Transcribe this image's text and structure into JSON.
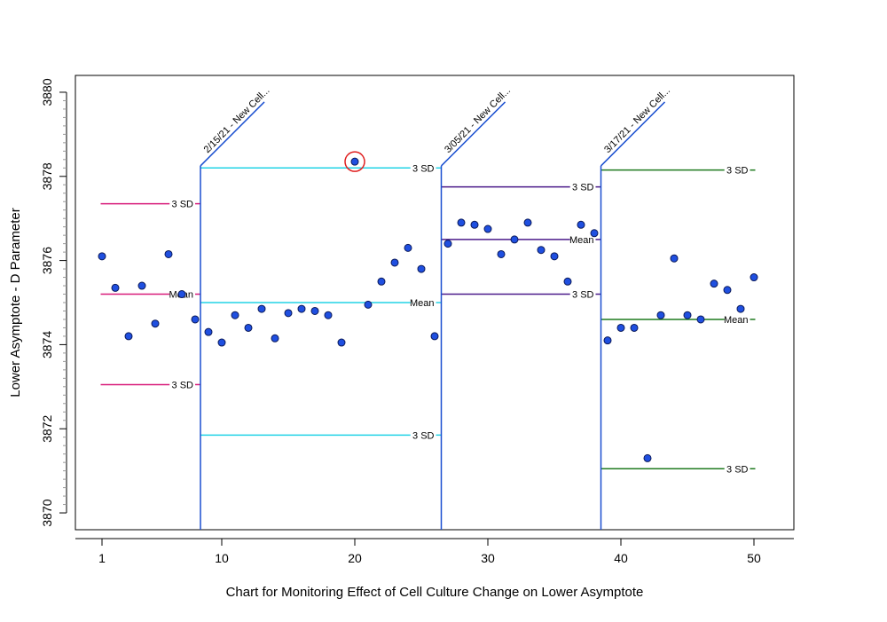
{
  "chart_data": {
    "type": "scatter",
    "title": "",
    "xlabel": "Chart for Monitoring Effect of Cell Culture Change on Lower Asymptote",
    "ylabel": "Lower Asymptote - D Parameter",
    "xlim": [
      -1,
      53
    ],
    "ylim": [
      3869.6,
      3880.4
    ],
    "x_ticks": [
      "1",
      "10",
      "20",
      "30",
      "40",
      "50"
    ],
    "x_tick_values": [
      1,
      10,
      20,
      30,
      40,
      50
    ],
    "y_ticks": [
      "3870",
      "3872",
      "3874",
      "3876",
      "3878",
      "3880"
    ],
    "y_tick_values": [
      3870,
      3872,
      3874,
      3876,
      3878,
      3880
    ],
    "grid": false,
    "marker_color": "#1f4fe0",
    "points": [
      {
        "x": 1,
        "y": 3876.1
      },
      {
        "x": 2,
        "y": 3875.35
      },
      {
        "x": 3,
        "y": 3874.2
      },
      {
        "x": 4,
        "y": 3875.4
      },
      {
        "x": 5,
        "y": 3874.5
      },
      {
        "x": 6,
        "y": 3876.15
      },
      {
        "x": 7,
        "y": 3875.2
      },
      {
        "x": 8,
        "y": 3874.6
      },
      {
        "x": 9,
        "y": 3874.3
      },
      {
        "x": 10,
        "y": 3874.05
      },
      {
        "x": 11,
        "y": 3874.7
      },
      {
        "x": 12,
        "y": 3874.4
      },
      {
        "x": 13,
        "y": 3874.85
      },
      {
        "x": 14,
        "y": 3874.15
      },
      {
        "x": 15,
        "y": 3874.75
      },
      {
        "x": 16,
        "y": 3874.85
      },
      {
        "x": 17,
        "y": 3874.8
      },
      {
        "x": 18,
        "y": 3874.7
      },
      {
        "x": 19,
        "y": 3874.05
      },
      {
        "x": 20,
        "y": 3878.35
      },
      {
        "x": 21,
        "y": 3874.95
      },
      {
        "x": 22,
        "y": 3875.5
      },
      {
        "x": 23,
        "y": 3875.95
      },
      {
        "x": 24,
        "y": 3876.3
      },
      {
        "x": 25,
        "y": 3875.8
      },
      {
        "x": 26,
        "y": 3874.2
      },
      {
        "x": 27,
        "y": 3876.4
      },
      {
        "x": 28,
        "y": 3876.9
      },
      {
        "x": 29,
        "y": 3876.85
      },
      {
        "x": 30,
        "y": 3876.75
      },
      {
        "x": 31,
        "y": 3876.15
      },
      {
        "x": 32,
        "y": 3876.5
      },
      {
        "x": 33,
        "y": 3876.9
      },
      {
        "x": 34,
        "y": 3876.25
      },
      {
        "x": 35,
        "y": 3876.1
      },
      {
        "x": 36,
        "y": 3875.5
      },
      {
        "x": 37,
        "y": 3876.85
      },
      {
        "x": 38,
        "y": 3876.65
      },
      {
        "x": 39,
        "y": 3874.1
      },
      {
        "x": 40,
        "y": 3874.4
      },
      {
        "x": 41,
        "y": 3874.4
      },
      {
        "x": 42,
        "y": 3871.3
      },
      {
        "x": 43,
        "y": 3874.7
      },
      {
        "x": 44,
        "y": 3876.05
      },
      {
        "x": 45,
        "y": 3874.7
      },
      {
        "x": 46,
        "y": 3874.6
      },
      {
        "x": 47,
        "y": 3875.45
      },
      {
        "x": 48,
        "y": 3875.3
      },
      {
        "x": 49,
        "y": 3874.85
      },
      {
        "x": 50,
        "y": 3875.6
      }
    ],
    "highlighted_point": {
      "x": 20,
      "y": 3878.35,
      "color": "#e02020"
    },
    "phases": [
      {
        "x_start": 0.9,
        "x_end": 8.4,
        "color": "#d81b7a",
        "divider_label": "",
        "limits": [
          {
            "label": "3 SD",
            "y": 3877.35
          },
          {
            "label": "Mean",
            "y": 3875.2
          },
          {
            "label": "3 SD",
            "y": 3873.05
          }
        ]
      },
      {
        "x_start": 8.4,
        "x_end": 26.5,
        "color": "#22d3e6",
        "divider_color": "#1a4fd0",
        "divider_label": "2/15/21 - New Cell...",
        "limits": [
          {
            "label": "3 SD",
            "y": 3878.2
          },
          {
            "label": "Mean",
            "y": 3875.0
          },
          {
            "label": "3 SD",
            "y": 3871.85
          }
        ]
      },
      {
        "x_start": 26.5,
        "x_end": 38.5,
        "color": "#4b1b8a",
        "divider_color": "#1a4fd0",
        "divider_label": "3/05/21 - New Cell...",
        "limits": [
          {
            "label": "3 SD",
            "y": 3877.75
          },
          {
            "label": "Mean",
            "y": 3876.5
          },
          {
            "label": "3 SD",
            "y": 3875.2
          }
        ]
      },
      {
        "x_start": 38.5,
        "x_end": 50.1,
        "color": "#1f7a1f",
        "divider_color": "#1a4fd0",
        "divider_label": "3/17/21 - New Cell...",
        "limits": [
          {
            "label": "3 SD",
            "y": 3878.15
          },
          {
            "label": "Mean",
            "y": 3874.6
          },
          {
            "label": "3 SD",
            "y": 3871.05
          }
        ]
      }
    ]
  }
}
